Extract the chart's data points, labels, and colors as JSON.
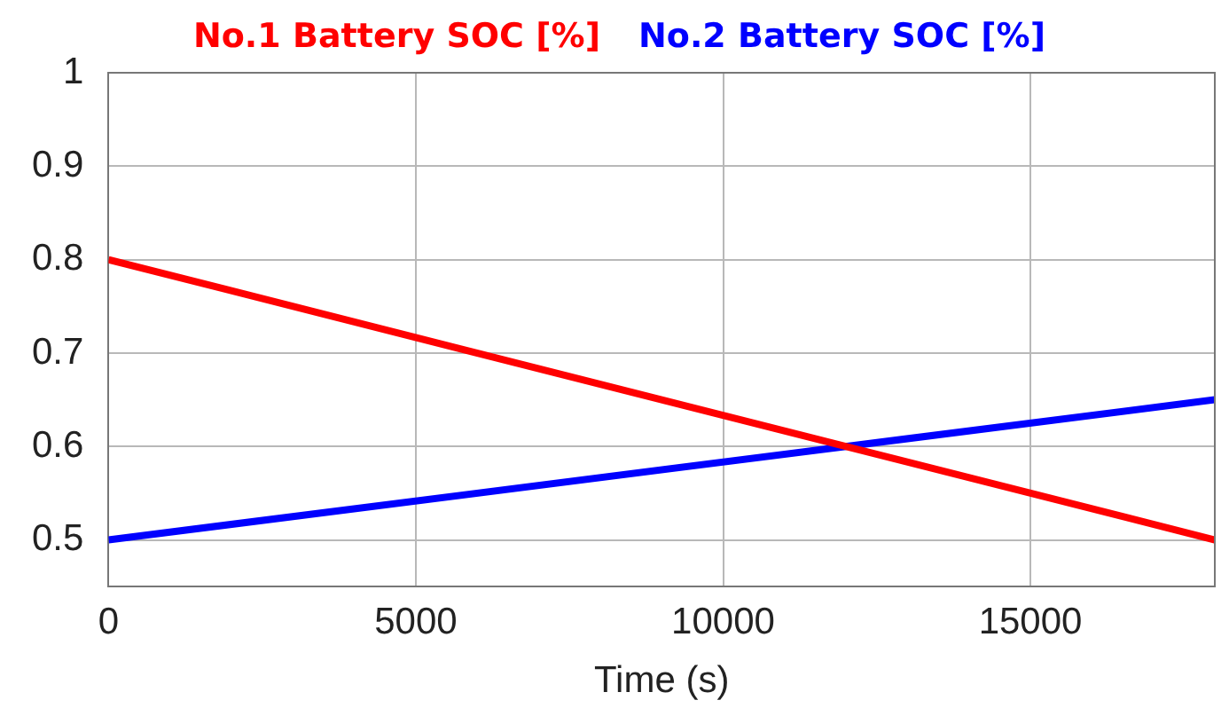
{
  "chart_data": {
    "type": "line",
    "xlabel": "Time (s)",
    "x": [
      0,
      18000
    ],
    "series": [
      {
        "name": "No.1 Battery SOC [%]",
        "color": "#ff0000",
        "values": [
          0.8,
          0.5
        ]
      },
      {
        "name": "No.2 Battery SOC [%]",
        "color": "#0000ff",
        "values": [
          0.5,
          0.65
        ]
      }
    ],
    "xlim": [
      0,
      18000
    ],
    "xticks": [
      0,
      5000,
      10000,
      15000
    ],
    "ylim": [
      0.45,
      1
    ],
    "yticks": [
      0.5,
      0.6,
      0.7,
      0.8,
      0.9,
      1
    ],
    "grid": true,
    "legend": "top",
    "marker": "none",
    "line_style": "solid"
  }
}
